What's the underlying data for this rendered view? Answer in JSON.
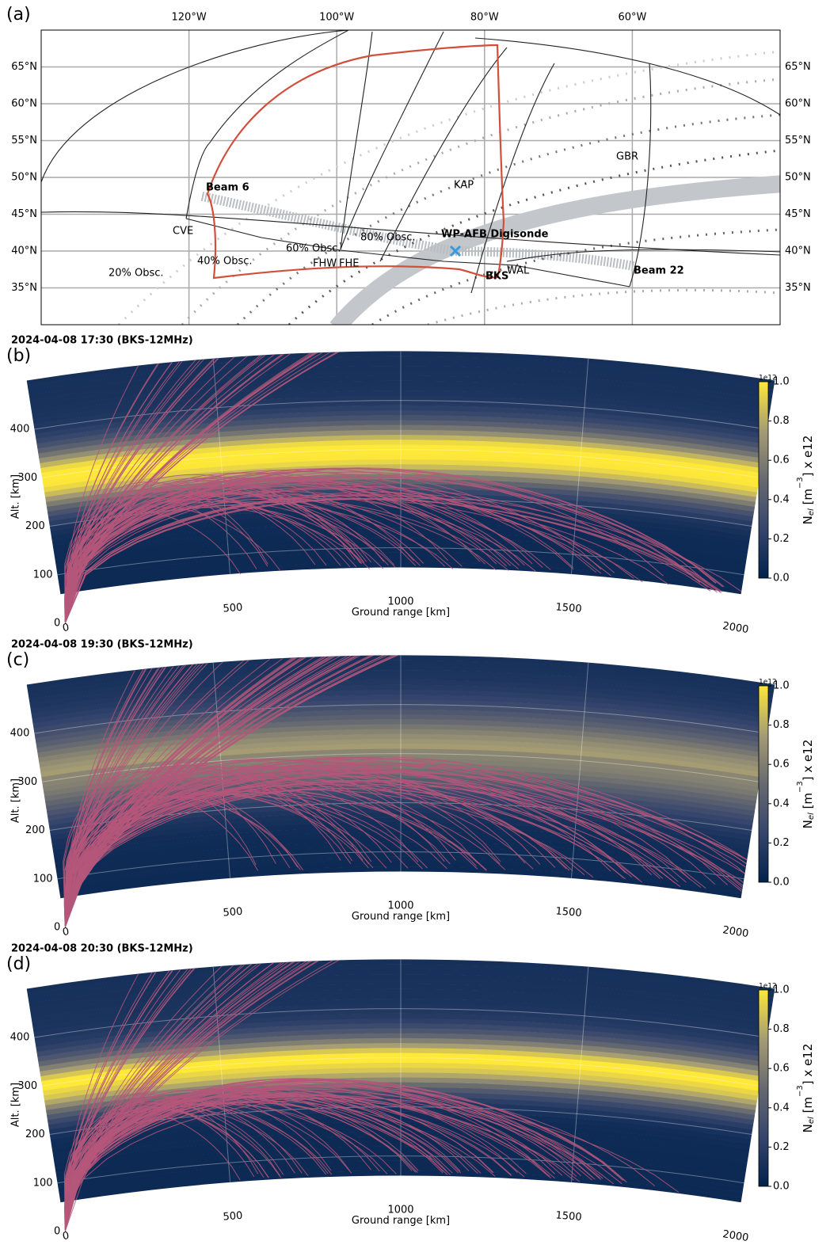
{
  "chart_data": [
    {
      "type": "map",
      "panel_label": "(a)",
      "xlim": [
        -140,
        -40
      ],
      "ylim": [
        30,
        70
      ],
      "xticks": [
        {
          "value": -120,
          "label": "120°W"
        },
        {
          "value": -100,
          "label": "100°W"
        },
        {
          "value": -80,
          "label": "80°W"
        },
        {
          "value": -60,
          "label": "60°W"
        }
      ],
      "yticks": [
        {
          "value": 35,
          "label": "35°N"
        },
        {
          "value": 40,
          "label": "40°N"
        },
        {
          "value": 45,
          "label": "45°N"
        },
        {
          "value": 50,
          "label": "50°N"
        },
        {
          "value": 55,
          "label": "55°N"
        },
        {
          "value": 60,
          "label": "60°N"
        },
        {
          "value": 65,
          "label": "65°N"
        }
      ],
      "annotations": [
        "Beam 6",
        "Beam 22",
        "KAP",
        "GBR",
        "CVE",
        "FHW",
        "FHE",
        "WAL",
        "BKS",
        "WP-AFB Digisonde",
        "20% Obsc.",
        "40% Obsc.",
        "60% Obsc.",
        "80% Obsc."
      ]
    },
    {
      "type": "raytrace",
      "panel_label": "(b)",
      "title": "2024-04-08 17:30 (BKS-12MHz)",
      "xlabel": "Ground range [km]",
      "ylabel": "Alt. [km]",
      "xlim": [
        0,
        2000
      ],
      "ylim": [
        0,
        500
      ],
      "xticks": [
        0,
        500,
        1000,
        1500,
        2000
      ],
      "yticks": [
        0,
        100,
        200,
        300,
        400
      ],
      "clim": [
        0,
        1
      ],
      "cticks": [
        {
          "value": 0,
          "label": "0.0"
        },
        0.2,
        0.4,
        0.6,
        0.8,
        {
          "value": 1,
          "label": "1.0"
        }
      ],
      "coffset": "1e12",
      "clabel": {
        "base": "N",
        "sub": "el",
        "mid": " [m",
        "sup": "−3",
        "end": "] x e12"
      }
    },
    {
      "type": "raytrace",
      "panel_label": "(c)",
      "title": "2024-04-08 19:30 (BKS-12MHz)",
      "xlabel": "Ground range [km]",
      "ylabel": "Alt. [km]",
      "xlim": [
        0,
        2000
      ],
      "ylim": [
        0,
        500
      ],
      "xticks": [
        0,
        500,
        1000,
        1500,
        2000
      ],
      "yticks": [
        0,
        100,
        200,
        300,
        400
      ],
      "clim": [
        0,
        1
      ],
      "cticks": [
        {
          "value": 0,
          "label": "0.0"
        },
        0.2,
        0.4,
        0.6,
        0.8,
        {
          "value": 1,
          "label": "1.0"
        }
      ],
      "coffset": "1e12",
      "clabel": {
        "base": "N",
        "sub": "el",
        "mid": " [m",
        "sup": "−3",
        "end": "] x e12"
      }
    },
    {
      "type": "raytrace",
      "panel_label": "(d)",
      "title": "2024-04-08 20:30 (BKS-12MHz)",
      "xlabel": "Ground range [km]",
      "ylabel": "Alt. [km]",
      "xlim": [
        0,
        2000
      ],
      "ylim": [
        0,
        500
      ],
      "xticks": [
        0,
        500,
        1000,
        1500,
        2000
      ],
      "yticks": [
        0,
        100,
        200,
        300,
        400
      ],
      "clim": [
        0,
        1
      ],
      "cticks": [
        {
          "value": 0,
          "label": "0.0"
        },
        0.2,
        0.4,
        0.6,
        0.8,
        {
          "value": 1,
          "label": "1.0"
        }
      ],
      "coffset": "1e12",
      "clabel": {
        "base": "N",
        "sub": "el",
        "mid": " [m",
        "sup": "−3",
        "end": "] x e12"
      }
    }
  ]
}
